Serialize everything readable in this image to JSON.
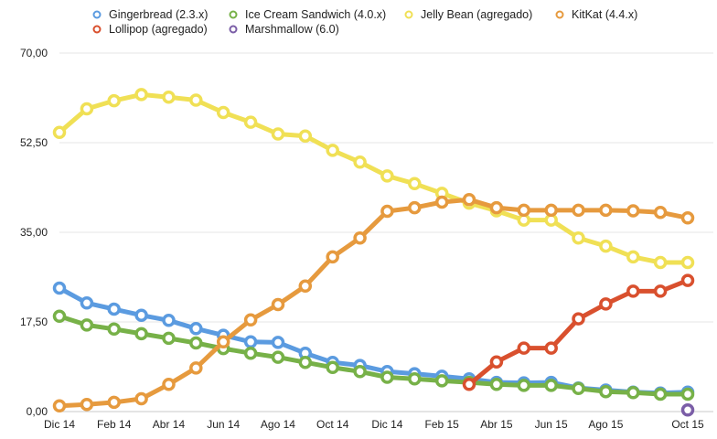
{
  "chart_data": {
    "type": "line",
    "title": "",
    "xlabel": "",
    "ylabel": "",
    "ylim": [
      0,
      70
    ],
    "y_ticks": [
      "0,00",
      "17,50",
      "35,00",
      "52,50",
      "70,00"
    ],
    "y_tick_values": [
      0,
      17.5,
      35,
      52.5,
      70
    ],
    "x_tick_labels": [
      "Dic 14",
      "Feb 14",
      "Abr 14",
      "Jun 14",
      "Ago 14",
      "Oct 14",
      "Dic 14",
      "Feb 15",
      "Abr 15",
      "Jun 15",
      "Ago 15",
      "Oct 15"
    ],
    "x_tick_positions": [
      0,
      2,
      4,
      6,
      8,
      10,
      12,
      14,
      16,
      18,
      20,
      23
    ],
    "x": [
      0,
      1,
      2,
      3,
      4,
      5,
      6,
      7,
      8,
      9,
      10,
      11,
      12,
      13,
      14,
      15,
      16,
      17,
      18,
      19,
      20,
      21,
      22,
      23
    ],
    "legend_position": "top",
    "series": [
      {
        "name": "Gingerbread (2.3.x)",
        "color": "#5b9be0",
        "values": [
          24.1,
          21.2,
          20.0,
          18.8,
          17.8,
          16.2,
          14.9,
          13.6,
          13.5,
          11.4,
          9.6,
          9.0,
          7.8,
          7.4,
          6.9,
          6.4,
          5.7,
          5.6,
          5.7,
          4.6,
          4.2,
          3.8,
          3.6,
          3.8
        ]
      },
      {
        "name": "Ice Cream Sandwich (4.0.x)",
        "color": "#77b148",
        "values": [
          18.6,
          16.9,
          16.1,
          15.2,
          14.3,
          13.4,
          12.3,
          11.4,
          10.6,
          9.6,
          8.6,
          7.8,
          6.7,
          6.4,
          6.0,
          5.7,
          5.3,
          5.1,
          5.1,
          4.5,
          3.9,
          3.7,
          3.4,
          3.4
        ]
      },
      {
        "name": "Jelly Bean (agregado)",
        "color": "#f0e055",
        "values": [
          54.5,
          59.1,
          60.7,
          61.9,
          61.4,
          60.8,
          58.4,
          56.5,
          54.2,
          53.8,
          51.0,
          48.7,
          46.0,
          44.5,
          42.6,
          40.7,
          39.2,
          37.4,
          37.4,
          33.9,
          32.3,
          30.2,
          29.1,
          29.1
        ]
      },
      {
        "name": "KitKat (4.4.x)",
        "color": "#e69a3e",
        "values": [
          1.1,
          1.4,
          1.8,
          2.5,
          5.3,
          8.5,
          13.6,
          17.9,
          20.9,
          24.5,
          30.2,
          33.9,
          39.1,
          39.8,
          40.9,
          41.4,
          39.8,
          39.3,
          39.3,
          39.3,
          39.3,
          39.2,
          38.9,
          37.8
        ]
      },
      {
        "name": "Lollipop (agregado)",
        "color": "#d9502e",
        "values": [
          null,
          null,
          null,
          null,
          null,
          null,
          null,
          null,
          null,
          null,
          null,
          null,
          null,
          null,
          null,
          5.3,
          9.7,
          12.4,
          12.4,
          18.1,
          21.0,
          23.5,
          23.5,
          25.6
        ]
      },
      {
        "name": "Marshmallow (6.0)",
        "color": "#7b5ea7",
        "values": [
          null,
          null,
          null,
          null,
          null,
          null,
          null,
          null,
          null,
          null,
          null,
          null,
          null,
          null,
          null,
          null,
          null,
          null,
          null,
          null,
          null,
          null,
          null,
          0.3
        ]
      }
    ]
  }
}
